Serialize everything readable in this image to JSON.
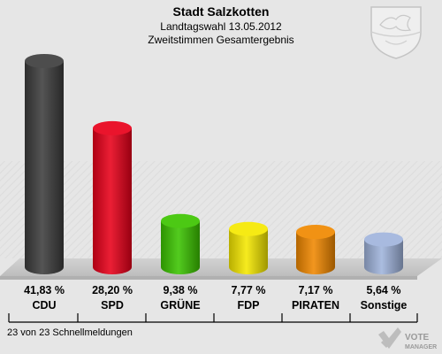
{
  "chart_data": {
    "type": "bar",
    "title": "Stadt Salzkotten",
    "subtitle_line1": "Landtagswahl 13.05.2012",
    "subtitle_line2": "Zweitstimmen Gesamtergebnis",
    "categories": [
      "CDU",
      "SPD",
      "GRÜNE",
      "FDP",
      "PIRATEN",
      "Sonstige"
    ],
    "values": [
      41.83,
      28.2,
      9.38,
      7.77,
      7.17,
      5.64
    ],
    "value_labels": [
      "41,83 %",
      "28,20 %",
      "9,38 %",
      "7,77 %",
      "7,17 %",
      "5,64 %"
    ],
    "colors": [
      "#3d3d3d",
      "#e8001a",
      "#3cc400",
      "#f5e800",
      "#f08800",
      "#a0b4dc"
    ],
    "ylim": [
      0,
      42
    ],
    "grid": false,
    "legend": "none"
  },
  "footer": {
    "text": "23 von 23 Schnellmeldungen",
    "brand_line1": "VOTE",
    "brand_line2": "MANAGER"
  },
  "emblem": {
    "icon": "coat-of-arms-icon"
  }
}
